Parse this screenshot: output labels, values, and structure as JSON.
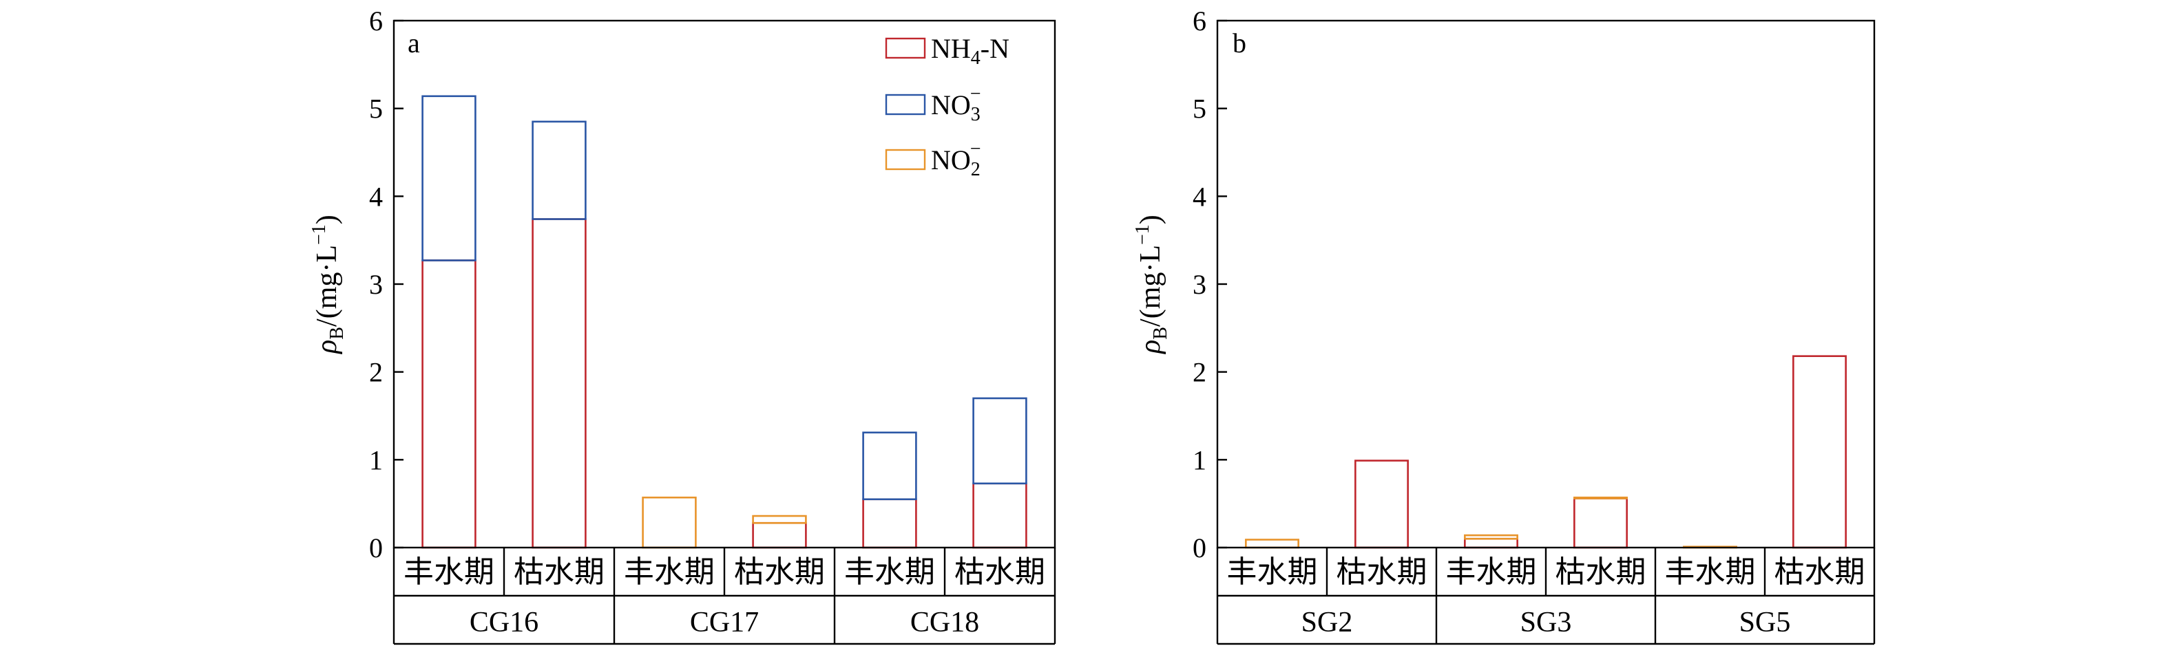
{
  "legend": {
    "items": [
      {
        "key": "nh4",
        "label": "NH",
        "sub": "4",
        "suffix": "-N",
        "color": "#c0272d"
      },
      {
        "key": "no3",
        "label": "NO",
        "sub": "3",
        "sup": "−",
        "color": "#2a56a5"
      },
      {
        "key": "no2",
        "label": "NO",
        "sub": "2",
        "sup": "−",
        "color": "#e8942b"
      }
    ]
  },
  "y_axis": {
    "label": "ρ",
    "label_sub": "B",
    "label_unit": "/(mg·L",
    "label_unit_sup": "−1",
    "label_close": ")"
  },
  "chart_data": [
    {
      "type": "bar",
      "panel_label": "a",
      "stacked": true,
      "ylim": [
        0,
        6
      ],
      "yticks": [
        "0",
        "1",
        "2",
        "3",
        "4",
        "5",
        "6"
      ],
      "groups": [
        "CG16",
        "CG17",
        "CG18"
      ],
      "categories": [
        "丰水期",
        "枯水期",
        "丰水期",
        "枯水期",
        "丰水期",
        "枯水期"
      ],
      "series": [
        {
          "name": "NH4-N",
          "values": [
            3.27,
            3.74,
            0,
            0.28,
            0.55,
            0.73
          ]
        },
        {
          "name": "NO3-",
          "values": [
            1.87,
            1.11,
            0,
            0,
            0.76,
            0.97
          ]
        },
        {
          "name": "NO2-",
          "values": [
            0,
            0,
            0.57,
            0.08,
            0,
            0
          ]
        }
      ],
      "legend_position": "top-right"
    },
    {
      "type": "bar",
      "panel_label": "b",
      "stacked": true,
      "ylim": [
        0,
        6
      ],
      "yticks": [
        "0",
        "1",
        "2",
        "3",
        "4",
        "5",
        "6"
      ],
      "groups": [
        "SG2",
        "SG3",
        "SG5"
      ],
      "categories": [
        "丰水期",
        "枯水期",
        "丰水期",
        "枯水期",
        "丰水期",
        "枯水期"
      ],
      "series": [
        {
          "name": "NH4-N",
          "values": [
            0,
            0.99,
            0.1,
            0.56,
            0,
            2.18
          ]
        },
        {
          "name": "NO3-",
          "values": [
            0,
            0,
            0,
            0,
            0,
            0
          ]
        },
        {
          "name": "NO2-",
          "values": [
            0.09,
            0,
            0.04,
            0.01,
            0.01,
            0
          ]
        }
      ]
    }
  ]
}
